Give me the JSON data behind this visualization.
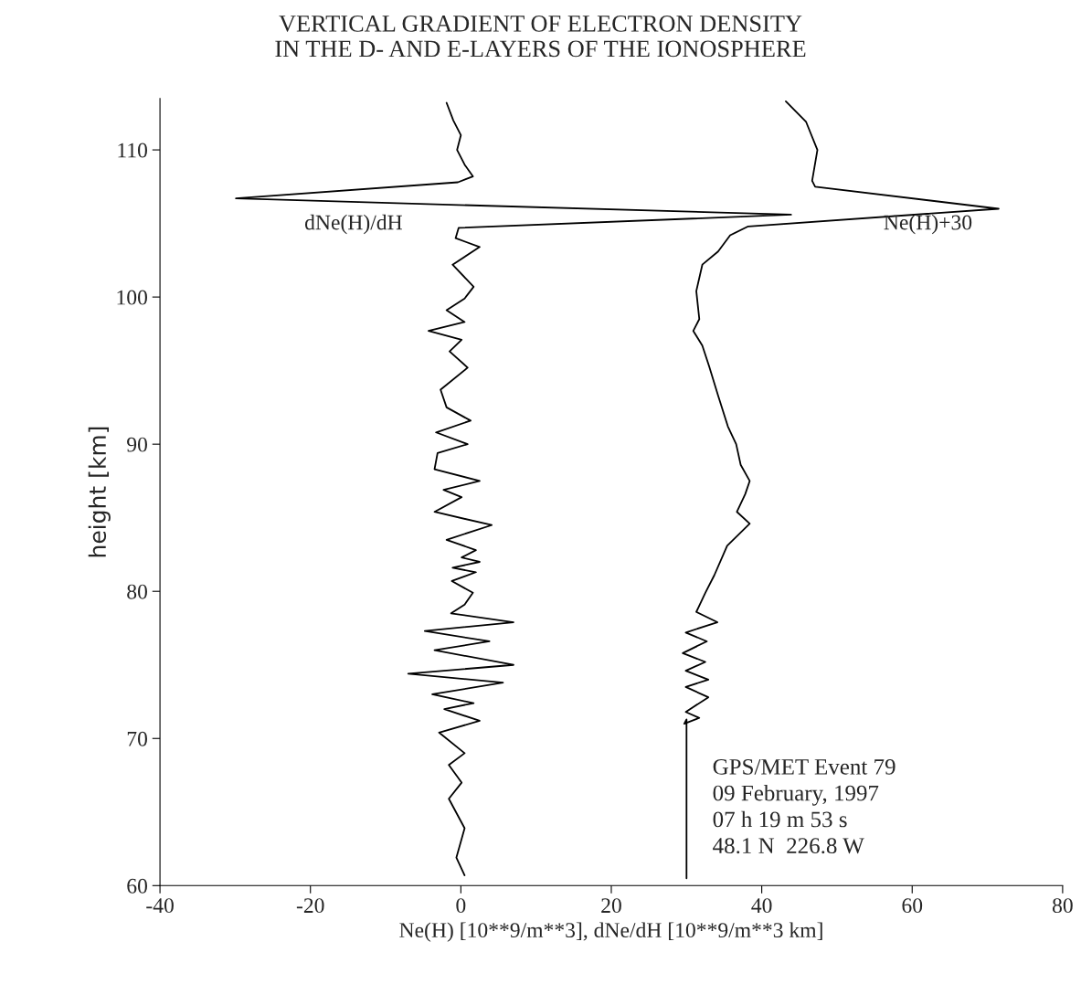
{
  "chart_data": {
    "type": "line",
    "title": "VERTICAL GRADIENT OF ELECTRON DENSITY\nIN THE D- AND E-LAYERS OF THE IONOSPHERE",
    "xlabel": "Ne(H) [10**9/m**3], dNe/dH [10**9/m**3 km]",
    "ylabel": "height [km]",
    "xlim": [
      -40,
      80
    ],
    "xticks": [
      -40,
      -20,
      0,
      20,
      40,
      60,
      80
    ],
    "ylim": [
      60,
      113.5
    ],
    "yticks": [
      60,
      70,
      80,
      90,
      100,
      110
    ],
    "grid": false,
    "legend": false,
    "marker": "none",
    "line_style": "solid",
    "series": [
      {
        "name": "dNe(H)/dH",
        "color": "#000000",
        "x": [
          0.5,
          -0.6,
          0.5,
          -1.6,
          0.1,
          -1.6,
          0.5,
          -2.9,
          2.5,
          -2.2,
          1.7,
          -3.8,
          5.6,
          -7.0,
          7.0,
          -3.5,
          3.8,
          -4.8,
          7.0,
          -1.3,
          0.5,
          1.6,
          -1.2,
          2.0,
          -1.1,
          2.5,
          0.1,
          2.0,
          -1.9,
          4.1,
          -3.5,
          0.1,
          -2.3,
          2.5,
          -3.5,
          -3.1,
          0.9,
          -3.3,
          1.3,
          -1.9,
          -2.7,
          0.9,
          -1.5,
          0.1,
          -4.3,
          0.5,
          -1.9,
          0.5,
          1.7,
          -1.1,
          2.5,
          -0.7,
          -0.3,
          43.9,
          -29.9,
          -0.4,
          1.6,
          0.5,
          -0.5,
          0.0,
          -1.0,
          -1.9
        ],
        "values": [
          60.7,
          61.9,
          63.9,
          65.9,
          67.0,
          68.2,
          69.0,
          70.4,
          71.2,
          72.0,
          72.4,
          73.0,
          73.8,
          74.4,
          75.0,
          76.0,
          76.6,
          77.3,
          77.9,
          78.5,
          79.1,
          79.9,
          80.7,
          81.3,
          81.6,
          82.0,
          82.3,
          82.8,
          83.5,
          84.5,
          85.4,
          86.4,
          86.9,
          87.5,
          88.3,
          89.4,
          90.0,
          90.8,
          91.6,
          92.5,
          93.7,
          95.2,
          96.3,
          97.1,
          97.7,
          98.3,
          99.1,
          99.9,
          100.7,
          102.2,
          103.4,
          104.0,
          104.7,
          105.6,
          106.7,
          107.8,
          108.2,
          109.0,
          110.0,
          111.0,
          112.0,
          113.2
        ]
      },
      {
        "name": "Ne(H)+30",
        "color": "#000000",
        "x": [
          30.0,
          30.0,
          29.7,
          31.7,
          29.9,
          32.9,
          29.9,
          32.9,
          29.9,
          32.5,
          29.5,
          32.7,
          29.9,
          34.1,
          31.3,
          32.5,
          33.7,
          35.4,
          38.4,
          36.7,
          37.8,
          38.4,
          37.2,
          36.6,
          35.5,
          34.2,
          33.0,
          32.1,
          30.9,
          31.7,
          31.3,
          32.1,
          34.2,
          35.8,
          38.2,
          71.5,
          47.1,
          46.7,
          47.4,
          45.9,
          43.2
        ],
        "values": [
          60.5,
          71.3,
          71.0,
          71.4,
          71.8,
          72.8,
          73.5,
          74.0,
          74.6,
          75.2,
          75.8,
          76.6,
          77.2,
          77.9,
          78.6,
          79.9,
          81.1,
          83.1,
          84.6,
          85.4,
          86.6,
          87.5,
          88.6,
          90.0,
          91.2,
          93.3,
          95.3,
          96.7,
          97.7,
          98.5,
          100.4,
          102.2,
          103.1,
          104.2,
          104.8,
          106.0,
          107.5,
          107.9,
          110.0,
          111.9,
          113.3
        ]
      }
    ],
    "annotations": [
      "GPS/MET Event 79\n09 February, 1997\n07 h 19 m 53 s\n48.1 N  226.8 W"
    ]
  }
}
